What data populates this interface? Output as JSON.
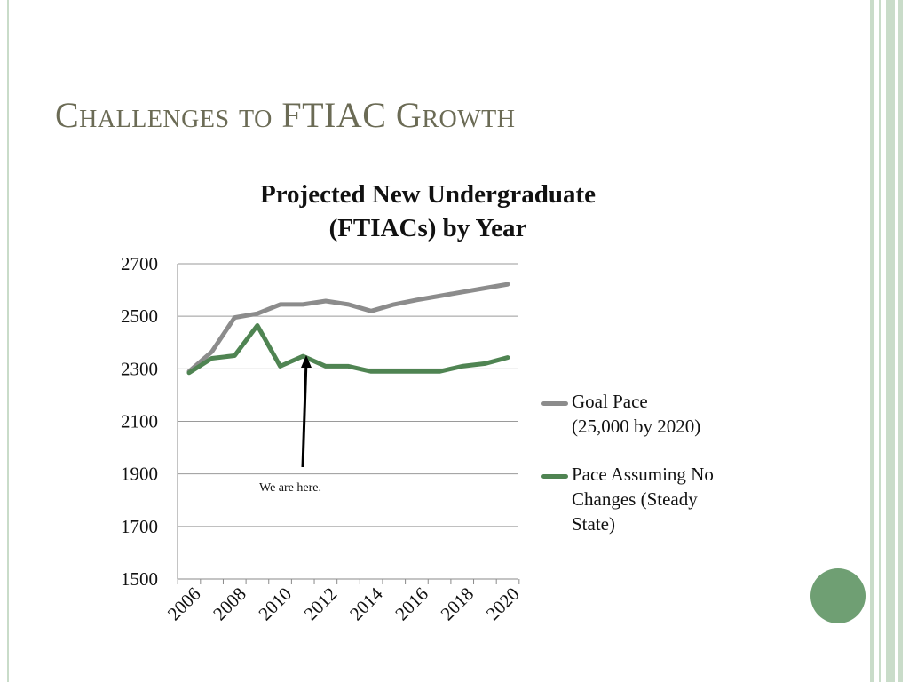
{
  "slide": {
    "title": "Challenges to FTIAC Growth"
  },
  "colors": {
    "goal": "#8c8c8c",
    "steady": "#4f8452",
    "accent_circle": "#6f9f73",
    "band": "#c9dcc9"
  },
  "chart_data": {
    "type": "line",
    "title_lines": [
      "Projected New Undergraduate",
      "(FTIACs) by Year"
    ],
    "x": [
      2006,
      2007,
      2008,
      2009,
      2010,
      2011,
      2012,
      2013,
      2014,
      2015,
      2016,
      2017,
      2018,
      2019,
      2020
    ],
    "x_tick_labels": [
      "2006",
      "2008",
      "2010",
      "2012",
      "2014",
      "2016",
      "2018",
      "2020"
    ],
    "y_tick_labels": [
      "2700",
      "2500",
      "2300",
      "2100",
      "1900",
      "1700",
      "1500"
    ],
    "ylim": [
      1500,
      2700
    ],
    "grid": true,
    "legend_position": "right",
    "series": [
      {
        "name_lines": [
          "Goal Pace",
          "(25,000 by 2020)"
        ],
        "color_key": "goal",
        "values": [
          2290,
          2365,
          2495,
          2510,
          2545,
          2545,
          2558,
          2545,
          2520,
          2545,
          2562,
          2577,
          2592,
          2607,
          2622
        ]
      },
      {
        "name_lines": [
          "Pace Assuming No",
          "Changes (Steady",
          "State)"
        ],
        "color_key": "steady",
        "values": [
          2285,
          2340,
          2350,
          2465,
          2310,
          2348,
          2310,
          2310,
          2290,
          2290,
          2290,
          2290,
          2310,
          2320,
          2343
        ]
      }
    ],
    "annotation": "We are here."
  }
}
